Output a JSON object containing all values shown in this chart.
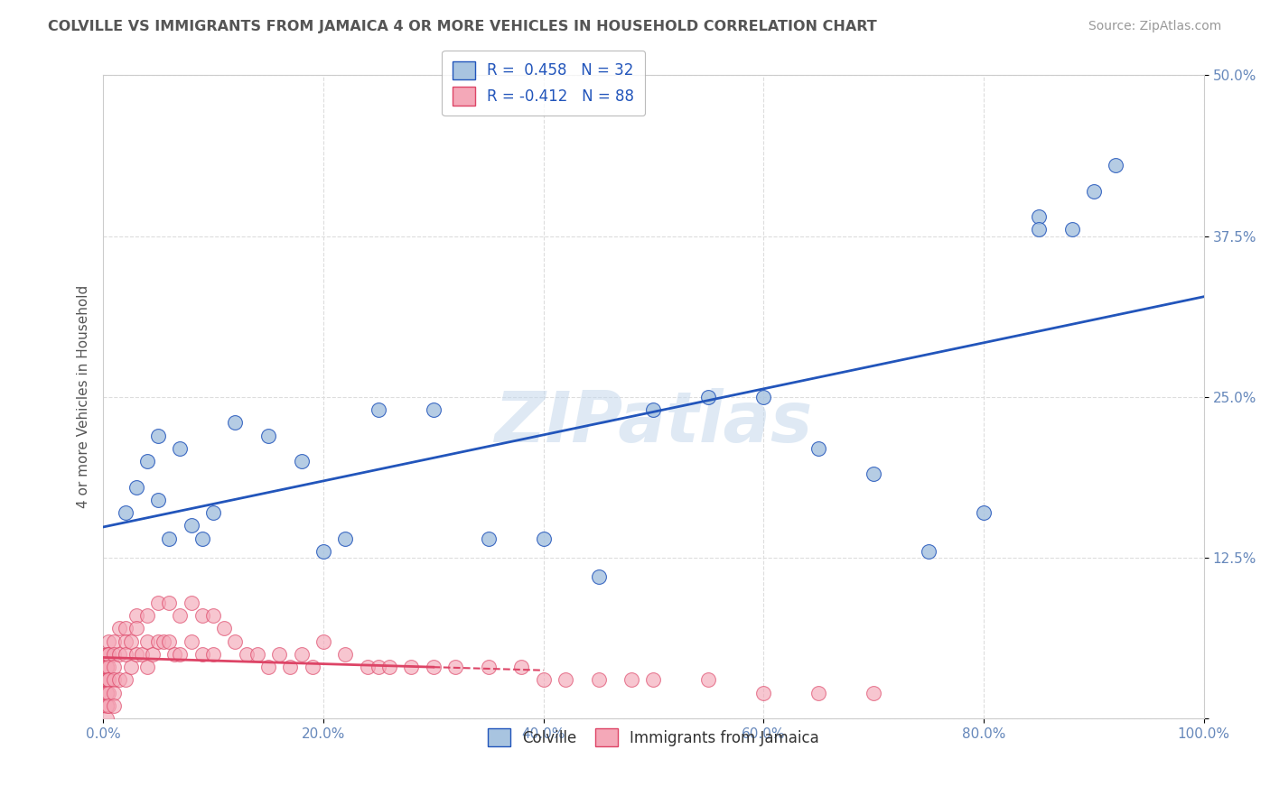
{
  "title": "COLVILLE VS IMMIGRANTS FROM JAMAICA 4 OR MORE VEHICLES IN HOUSEHOLD CORRELATION CHART",
  "source": "Source: ZipAtlas.com",
  "ylabel": "4 or more Vehicles in Household",
  "xlim": [
    0,
    100
  ],
  "ylim": [
    0,
    50
  ],
  "xticks": [
    0,
    20,
    40,
    60,
    80,
    100
  ],
  "xticklabels": [
    "0.0%",
    "20.0%",
    "40.0%",
    "60.0%",
    "80.0%",
    "100.0%"
  ],
  "yticks": [
    0,
    12.5,
    25,
    37.5,
    50
  ],
  "yticklabels": [
    "",
    "12.5%",
    "25.0%",
    "37.5%",
    "50.0%"
  ],
  "legend_labels": [
    "Colville",
    "Immigrants from Jamaica"
  ],
  "r_blue": 0.458,
  "n_blue": 32,
  "r_pink": -0.412,
  "n_pink": 88,
  "blue_scatter_color": "#a8c4e0",
  "pink_scatter_color": "#f4a8b8",
  "blue_line_color": "#2255bb",
  "pink_line_color": "#dd4466",
  "watermark": "ZIPatlas",
  "background_color": "#ffffff",
  "grid_color": "#dddddd",
  "title_color": "#555555",
  "tick_color": "#6688bb",
  "colville_x": [
    2,
    3,
    4,
    5,
    5,
    6,
    7,
    8,
    9,
    10,
    12,
    15,
    18,
    20,
    22,
    25,
    30,
    35,
    40,
    45,
    50,
    55,
    60,
    65,
    70,
    75,
    80,
    85,
    85,
    88,
    90,
    92
  ],
  "colville_y": [
    16,
    18,
    20,
    17,
    22,
    14,
    21,
    15,
    14,
    16,
    23,
    22,
    20,
    13,
    14,
    24,
    24,
    14,
    14,
    11,
    24,
    25,
    25,
    21,
    19,
    13,
    16,
    39,
    38,
    38,
    41,
    43
  ],
  "jamaica_x": [
    0.3,
    0.3,
    0.3,
    0.3,
    0.3,
    0.3,
    0.3,
    0.3,
    0.3,
    0.3,
    0.3,
    0.3,
    0.3,
    0.3,
    0.3,
    0.5,
    0.5,
    0.5,
    0.5,
    0.5,
    0.5,
    0.5,
    0.5,
    1.0,
    1.0,
    1.0,
    1.0,
    1.0,
    1.0,
    1.5,
    1.5,
    1.5,
    2.0,
    2.0,
    2.0,
    2.0,
    2.5,
    2.5,
    3.0,
    3.0,
    3.0,
    3.5,
    4.0,
    4.0,
    4.0,
    4.5,
    5.0,
    5.0,
    5.5,
    6.0,
    6.0,
    6.5,
    7.0,
    7.0,
    8.0,
    8.0,
    9.0,
    9.0,
    10.0,
    10.0,
    11.0,
    12.0,
    13.0,
    14.0,
    15.0,
    16.0,
    17.0,
    18.0,
    19.0,
    20.0,
    22.0,
    24.0,
    25.0,
    26.0,
    28.0,
    30.0,
    32.0,
    35.0,
    38.0,
    40.0,
    42.0,
    45.0,
    48.0,
    50.0,
    55.0,
    60.0,
    65.0,
    70.0
  ],
  "jamaica_y": [
    5,
    5,
    4,
    4,
    4,
    3,
    3,
    3,
    2,
    2,
    2,
    1,
    1,
    1,
    0,
    6,
    5,
    5,
    4,
    3,
    3,
    2,
    1,
    6,
    5,
    4,
    3,
    2,
    1,
    7,
    5,
    3,
    7,
    6,
    5,
    3,
    6,
    4,
    8,
    7,
    5,
    5,
    8,
    6,
    4,
    5,
    9,
    6,
    6,
    9,
    6,
    5,
    8,
    5,
    9,
    6,
    8,
    5,
    8,
    5,
    7,
    6,
    5,
    5,
    4,
    5,
    4,
    5,
    4,
    6,
    5,
    4,
    4,
    4,
    4,
    4,
    4,
    4,
    4,
    3,
    3,
    3,
    3,
    3,
    3,
    2,
    2,
    2
  ]
}
